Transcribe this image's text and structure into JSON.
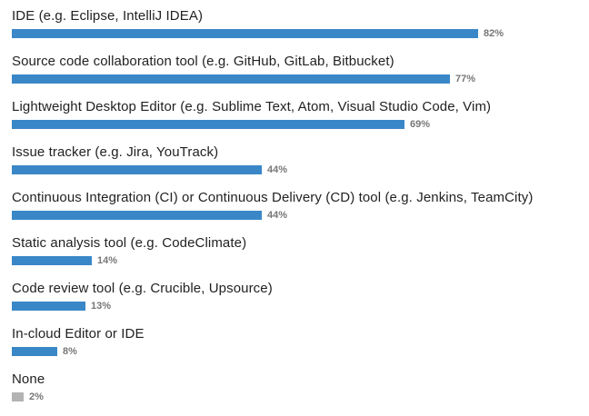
{
  "chart_data": {
    "type": "bar",
    "orientation": "horizontal",
    "title": "",
    "xlabel": "",
    "ylabel": "",
    "xlim": [
      0,
      100
    ],
    "grid": false,
    "legend": "none",
    "value_suffix": "%",
    "bar_color": "#3a87c8",
    "muted_bar_color": "#b3b3b3",
    "categories": [
      "IDE (e.g. Eclipse, IntelliJ IDEA)",
      "Source code collaboration tool (e.g. GitHub, GitLab, Bitbucket)",
      "Lightweight Desktop Editor (e.g. Sublime Text, Atom, Visual Studio Code, Vim)",
      "Issue tracker (e.g. Jira, YouTrack)",
      "Continuous Integration (CI) or Continuous Delivery (CD) tool (e.g. Jenkins, TeamCity)",
      "Static analysis tool (e.g. CodeClimate)",
      "Code review tool (e.g. Crucible, Upsource)",
      "In-cloud Editor or IDE",
      "None"
    ],
    "values": [
      82,
      77,
      69,
      44,
      44,
      14,
      13,
      8,
      2
    ],
    "value_labels": [
      "82%",
      "77%",
      "69%",
      "44%",
      "44%",
      "14%",
      "13%",
      "8%",
      "2%"
    ],
    "muted_categories": [
      "None"
    ]
  }
}
